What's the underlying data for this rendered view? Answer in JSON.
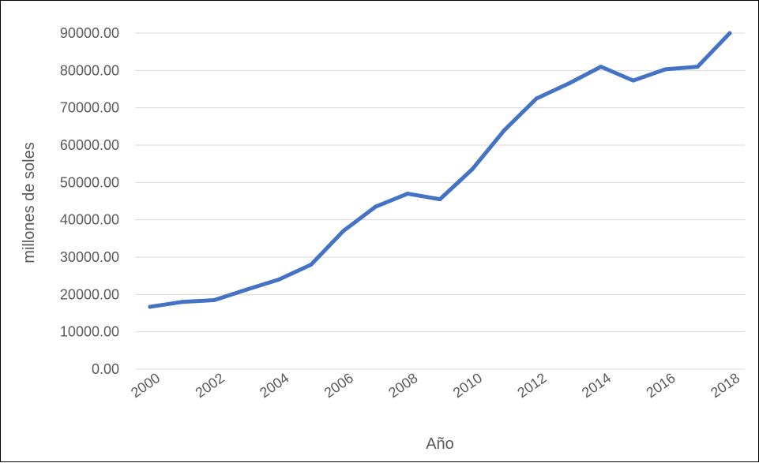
{
  "chart_data": {
    "type": "line",
    "title": "",
    "xlabel": "Año",
    "ylabel": "millones de soles",
    "x": [
      2000,
      2001,
      2002,
      2003,
      2004,
      2005,
      2006,
      2007,
      2008,
      2009,
      2010,
      2011,
      2012,
      2013,
      2014,
      2015,
      2016,
      2017,
      2018
    ],
    "x_tick_labels": [
      "2000",
      "2002",
      "2004",
      "2006",
      "2008",
      "2010",
      "2012",
      "2014",
      "2016",
      "2018"
    ],
    "y_tick_labels": [
      "0.00",
      "10000.00",
      "20000.00",
      "30000.00",
      "40000.00",
      "50000.00",
      "60000.00",
      "70000.00",
      "80000.00",
      "90000.00"
    ],
    "ylim": [
      0,
      90000
    ],
    "y_tick_step": 10000,
    "grid": true,
    "series": [
      {
        "values": [
          16700,
          18000,
          18500,
          21300,
          24000,
          28000,
          37000,
          43500,
          47000,
          45500,
          53500,
          64000,
          72500,
          76500,
          81000,
          77300,
          80300,
          81000,
          90000
        ],
        "color": "#4472C4"
      }
    ]
  }
}
